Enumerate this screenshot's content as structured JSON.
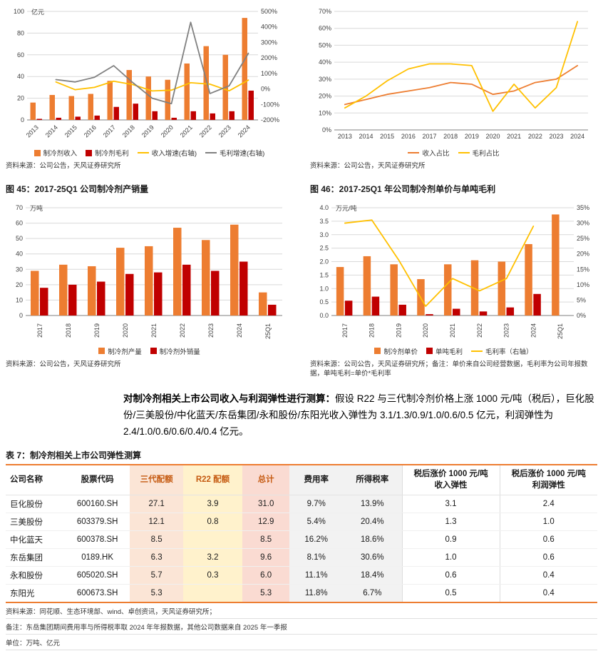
{
  "palette": {
    "accent_orange": "#ED7D31",
    "bar_orange": "#ED7D31",
    "bar_dark_red": "#C00000",
    "line_yellow": "#FFC000",
    "line_gray": "#808080",
    "table_border": "#ED7D31",
    "col_peach": "#FBE5D6",
    "col_yellow": "#FFF2CC",
    "col_pink": "#FADBD2",
    "col_gray": "#F2F2F2",
    "header_orange_text": "#C55A11"
  },
  "sources": {
    "top_left": "资料来源：公司公告，天风证券研究所",
    "top_right": "资料来源：公司公告，天风证券研究所"
  },
  "figures": {
    "fig45_title": "图 45：2017-25Q1 公司制冷剂产销量",
    "fig45_source": "资料来源：公司公告，天风证券研究所",
    "fig46_title": "图 46：2017-25Q1 年公司制冷剂单价与单吨毛利",
    "fig46_source": "资料来源：公司公告，天风证券研究所；备注：单价来自公司经营数据，毛利率为公司年报数据，单吨毛利=单价*毛利率"
  },
  "paragraph": {
    "bold": "对制冷剂相关上市公司收入与利润弹性进行测算：",
    "rest": "假设 R22 与三代制冷剂价格上涨 1000 元/吨（税后），巨化股份/三美股份/中化蓝天/东岳集团/永和股份/东阳光收入弹性为 3.1/1.3/0.9/1.0/0.6/0.5 亿元，利润弹性为 2.4/1.0/0.6/0.6/0.4/0.4 亿元。"
  },
  "table": {
    "title": "表 7：制冷剂相关上市公司弹性测算",
    "columns": [
      {
        "label": "公司名称"
      },
      {
        "label": "股票代码"
      },
      {
        "label": "三代配额",
        "bg": "#FBE5D6",
        "color": "#C55A11"
      },
      {
        "label": "R22 配额",
        "bg": "#FFF2CC",
        "color": "#C55A11"
      },
      {
        "label": "总计",
        "bg": "#FADBD2",
        "color": "#C55A11"
      },
      {
        "label": "费用率",
        "bg": "#F2F2F2"
      },
      {
        "label": "所得税率",
        "bg": "#F2F2F2"
      },
      {
        "label": "税后涨价 1000 元/吨",
        "sub": "收入弹性"
      },
      {
        "label": "税后涨价 1000 元/吨",
        "sub": "利润弹性"
      }
    ],
    "rows": [
      [
        "巨化股份",
        "600160.SH",
        "27.1",
        "3.9",
        "31.0",
        "9.7%",
        "13.9%",
        "3.1",
        "2.4"
      ],
      [
        "三美股份",
        "603379.SH",
        "12.1",
        "0.8",
        "12.9",
        "5.4%",
        "20.4%",
        "1.3",
        "1.0"
      ],
      [
        "中化蓝天",
        "600378.SH",
        "8.5",
        "",
        "8.5",
        "16.2%",
        "18.6%",
        "0.9",
        "0.6"
      ],
      [
        "东岳集团",
        "0189.HK",
        "6.3",
        "3.2",
        "9.6",
        "8.1%",
        "30.6%",
        "1.0",
        "0.6"
      ],
      [
        "永和股份",
        "605020.SH",
        "5.7",
        "0.3",
        "6.0",
        "11.1%",
        "18.4%",
        "0.6",
        "0.4"
      ],
      [
        "东阳光",
        "600673.SH",
        "5.3",
        "",
        "5.3",
        "11.8%",
        "6.7%",
        "0.5",
        "0.4"
      ]
    ],
    "footnotes": [
      "资料来源：同花顺、生态环境部、wind、卓创资讯，天风证券研究所；",
      "备注：东岳集团期间费用率与所得税率取 2024 年年报数据，其他公司数据来自 2025 年一季报",
      "单位：万吨、亿元"
    ]
  },
  "chart_data": [
    {
      "id": "revenue-gross-profit-chart",
      "type": "combo",
      "title": "",
      "categories": [
        "2013",
        "2014",
        "2015",
        "2016",
        "2017",
        "2018",
        "2019",
        "2020",
        "2021",
        "2022",
        "2023",
        "2024"
      ],
      "left_axis": {
        "min": 0,
        "max": 100,
        "step": 20,
        "unit": "亿元"
      },
      "right_axis": {
        "min": -200,
        "max": 500,
        "step": 100,
        "format": "pct"
      },
      "x_label_rotation": -45,
      "grid": true,
      "legend_position": "bottom",
      "series": [
        {
          "name": "制冷剂收入",
          "type": "bar",
          "axis": "left",
          "color": "#ED7D31",
          "values": [
            16,
            23,
            22,
            24,
            36,
            46,
            40,
            37,
            52,
            68,
            60,
            94
          ]
        },
        {
          "name": "制冷剂毛利",
          "type": "bar",
          "axis": "left",
          "color": "#C00000",
          "values": [
            1,
            2,
            3,
            4,
            12,
            15,
            8,
            2,
            8,
            6,
            8,
            27
          ]
        },
        {
          "name": "收入增速(右轴)",
          "type": "line",
          "axis": "right",
          "color": "#FFC000",
          "values": [
            null,
            45,
            -5,
            10,
            50,
            28,
            -13,
            -8,
            40,
            31,
            -12,
            57
          ]
        },
        {
          "name": "毛利增速(右轴)",
          "type": "line",
          "axis": "right",
          "color": "#808080",
          "values": [
            null,
            60,
            45,
            75,
            150,
            40,
            -60,
            -95,
            430,
            -30,
            20,
            230
          ]
        }
      ]
    },
    {
      "id": "share-chart",
      "type": "line",
      "title": "",
      "categories": [
        "2013",
        "2014",
        "2015",
        "2016",
        "2017",
        "2018",
        "2019",
        "2020",
        "2021",
        "2022",
        "2023",
        "2024"
      ],
      "left_axis": {
        "min": 0,
        "max": 70,
        "step": 10,
        "format": "pct"
      },
      "x_label_rotation": 0,
      "grid": true,
      "legend_position": "bottom",
      "series": [
        {
          "name": "收入占比",
          "type": "line",
          "axis": "left",
          "color": "#ED7D31",
          "values": [
            15,
            18,
            21,
            23,
            25,
            28,
            27,
            21,
            23,
            28,
            30,
            38
          ]
        },
        {
          "name": "毛利占比",
          "type": "line",
          "axis": "left",
          "color": "#FFC000",
          "values": [
            13,
            20,
            29,
            36,
            39,
            39,
            38,
            11,
            27,
            13,
            25,
            64
          ]
        }
      ]
    },
    {
      "id": "production-sales-chart",
      "type": "bar",
      "title": "2017-25Q1 公司制冷剂产销量",
      "categories": [
        "2017",
        "2018",
        "2019",
        "2020",
        "2021",
        "2022",
        "2023",
        "2024",
        "25Q1"
      ],
      "left_axis": {
        "min": 0,
        "max": 70,
        "step": 10,
        "unit": "万吨"
      },
      "x_label_rotation": -90,
      "grid": true,
      "legend_position": "bottom",
      "series": [
        {
          "name": "制冷剂产量",
          "type": "bar",
          "axis": "left",
          "color": "#ED7D31",
          "values": [
            29,
            33,
            32,
            44,
            45,
            57,
            49,
            59,
            15
          ]
        },
        {
          "name": "制冷剂外销量",
          "type": "bar",
          "axis": "left",
          "color": "#C00000",
          "values": [
            18,
            20,
            22,
            27,
            28,
            33,
            29,
            35,
            7
          ]
        }
      ]
    },
    {
      "id": "price-margin-chart",
      "type": "combo",
      "title": "2017-25Q1 年公司制冷剂单价与单吨毛利",
      "categories": [
        "2017",
        "2018",
        "2019",
        "2020",
        "2021",
        "2022",
        "2023",
        "2024",
        "25Q1"
      ],
      "left_axis": {
        "min": 0,
        "max": 4,
        "step": 0.5,
        "unit": "万元/吨",
        "decimals": 1
      },
      "right_axis": {
        "min": 0,
        "max": 35,
        "step": 5,
        "format": "pct"
      },
      "x_label_rotation": -90,
      "grid": true,
      "legend_position": "bottom",
      "series": [
        {
          "name": "制冷剂单价",
          "type": "bar",
          "axis": "left",
          "color": "#ED7D31",
          "values": [
            1.8,
            2.2,
            1.9,
            1.35,
            1.9,
            2.05,
            2.0,
            2.65,
            3.75
          ]
        },
        {
          "name": "单吨毛利",
          "type": "bar",
          "axis": "left",
          "color": "#C00000",
          "values": [
            0.55,
            0.7,
            0.4,
            0.05,
            0.25,
            0.15,
            0.3,
            0.8,
            null
          ]
        },
        {
          "name": "毛利率（右轴）",
          "type": "line",
          "axis": "right",
          "color": "#FFC000",
          "values": [
            30,
            31,
            18,
            3,
            12,
            8,
            12,
            29,
            null
          ]
        }
      ]
    }
  ]
}
